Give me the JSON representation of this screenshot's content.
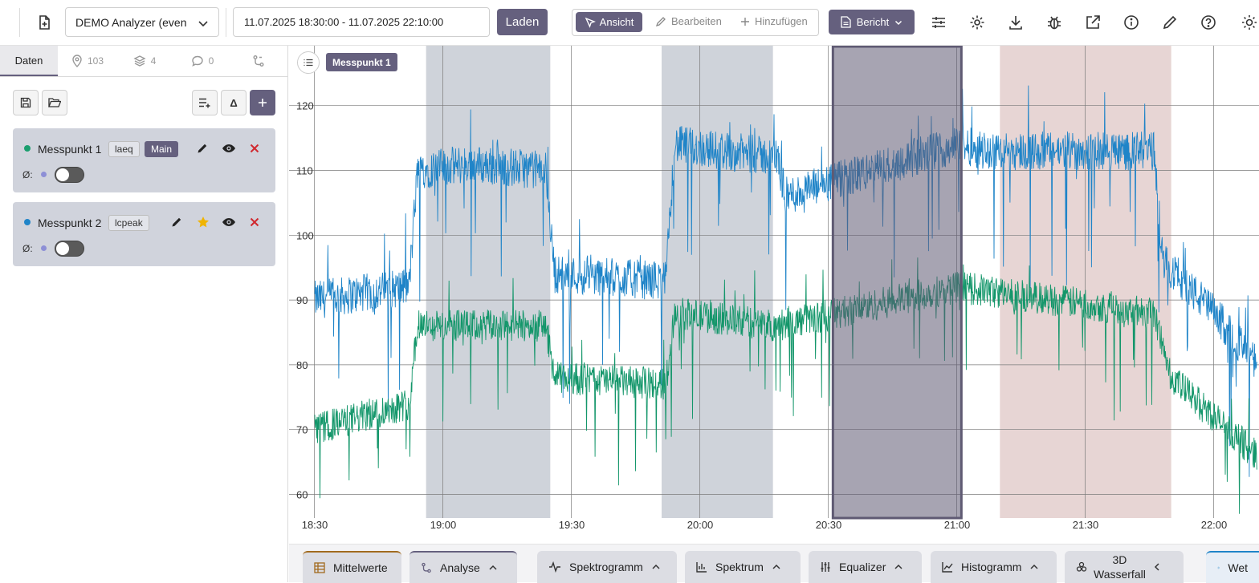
{
  "toolbar": {
    "project_select": "DEMO Analyzer (even",
    "time_range": "11.07.2025 18:30:00 - 11.07.2025 22:10:00",
    "load_label": "Laden",
    "mode_view": "Ansicht",
    "mode_edit": "Bearbeiten",
    "mode_add": "Hinzufügen",
    "report_label": "Bericht"
  },
  "tabs": {
    "data": "Daten",
    "locations_count": "103",
    "layers_count": "4",
    "comments_count": "0"
  },
  "measurements": [
    {
      "name": "Messpunkt 1",
      "tag": "laeq",
      "badge": "Main",
      "avg_label": "Ø:",
      "dot_color": "#1a9e6e"
    },
    {
      "name": "Messpunkt 2",
      "tag": "lcpeak",
      "avg_label": "Ø:",
      "dot_color": "#1f84c8"
    }
  ],
  "chart_badge": "Messpunkt 1",
  "chart_data": {
    "type": "line",
    "x_ticks": [
      "18:30",
      "19:00",
      "19:30",
      "20:00",
      "20:30",
      "21:00",
      "21:30",
      "22:00"
    ],
    "y_ticks": [
      "60",
      "70",
      "80",
      "90",
      "100",
      "110",
      "120"
    ],
    "xlim": [
      "18:30",
      "22:10"
    ],
    "ylim": [
      56,
      129
    ],
    "grid": true,
    "series": [
      {
        "color": "#1f84c8",
        "segments": [
          [
            "18:30",
            90
          ],
          [
            "18:52",
            92
          ],
          [
            "18:54",
            110
          ],
          [
            "19:06",
            111
          ],
          [
            "19:24",
            110
          ],
          [
            "19:26",
            94
          ],
          [
            "19:52",
            93
          ],
          [
            "19:54",
            114
          ],
          [
            "20:18",
            112
          ],
          [
            "20:20",
            106
          ],
          [
            "21:00",
            114
          ],
          [
            "21:08",
            113
          ],
          [
            "21:46",
            113
          ],
          [
            "21:48",
            96
          ],
          [
            "22:00",
            88
          ],
          [
            "22:10",
            80
          ]
        ],
        "noise": 6
      },
      {
        "color": "#13966a",
        "segments": [
          [
            "18:30",
            70
          ],
          [
            "18:52",
            74
          ],
          [
            "18:54",
            86
          ],
          [
            "19:24",
            86
          ],
          [
            "19:26",
            78
          ],
          [
            "19:52",
            77
          ],
          [
            "19:54",
            88
          ],
          [
            "20:18",
            86
          ],
          [
            "21:00",
            92
          ],
          [
            "21:46",
            88
          ],
          [
            "21:50",
            78
          ],
          [
            "22:10",
            66
          ]
        ],
        "noise": 5
      }
    ],
    "regions": [
      {
        "start": "18:56",
        "end": "19:25",
        "color": "#cfd3da"
      },
      {
        "start": "19:51",
        "end": "20:17",
        "color": "#cfd3da"
      },
      {
        "start": "21:10",
        "end": "21:50",
        "color": "#e7d5d4"
      }
    ],
    "selection": {
      "start": "20:31",
      "end": "21:01"
    }
  },
  "bottom_tabs": [
    {
      "label": "Mittelwerte",
      "icon": "table-icon"
    },
    {
      "label": "Analyse",
      "icon": "branch-icon"
    },
    {
      "label": "Spektrogramm",
      "icon": "wave-icon"
    },
    {
      "label": "Spektrum",
      "icon": "bars-icon"
    },
    {
      "label": "Equalizer",
      "icon": "sliders-icon"
    },
    {
      "label": "Histogramm",
      "icon": "line-icon"
    },
    {
      "label": "3D",
      "label2": "Wasserfall",
      "icon": "cubes-icon"
    },
    {
      "label": "Wet",
      "icon": "sun-icon"
    }
  ]
}
